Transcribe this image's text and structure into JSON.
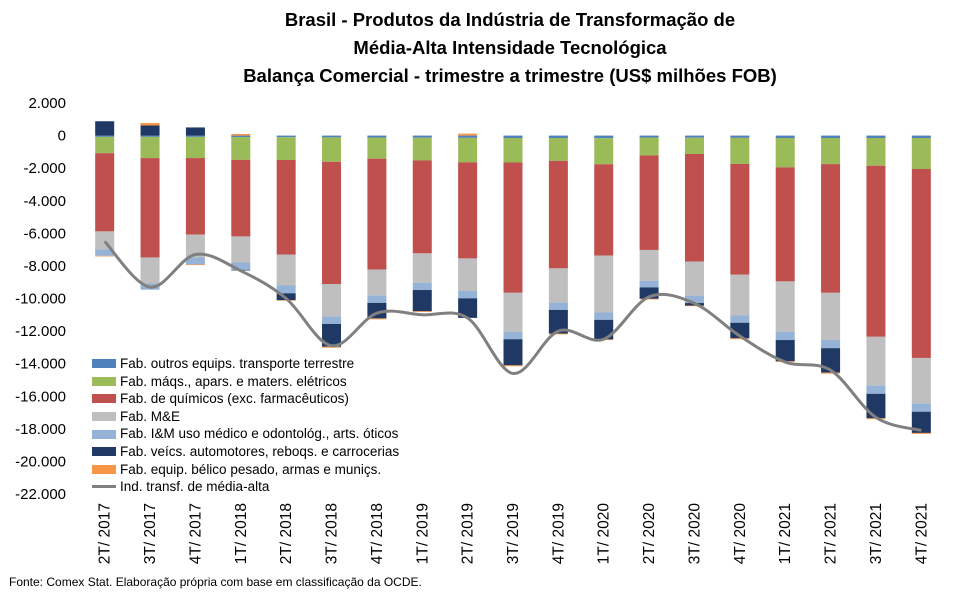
{
  "title_lines": [
    "Brasil - Produtos da Indústria de Transformação de",
    "Média-Alta Intensidade Tecnológica",
    "Balança Comercial - trimestre a trimestre (US$ milhões FOB)"
  ],
  "source": "Fonte:  Comex Stat. Elaboração própria com base em classificação da OCDE.",
  "chart_data": {
    "type": "bar",
    "stacked": true,
    "categories": [
      "2T/ 2017",
      "3T/ 2017",
      "4T/ 2017",
      "1T/ 2018",
      "2T/ 2018",
      "3T/ 2018",
      "4T/ 2018",
      "1T/ 2019",
      "2T/ 2019",
      "3T/ 2019",
      "4T/ 2019",
      "1T/ 2020",
      "2T/ 2020",
      "3T/ 2020",
      "4T/ 2020",
      "1T/ 2021",
      "2T/ 2021",
      "3T/ 2021",
      "4T/ 2021"
    ],
    "y_ticks": [
      "2.000",
      "0",
      "-2.000",
      "-4.000",
      "-6.000",
      "-8.000",
      "-10.000",
      "-12.000",
      "-14.000",
      "-16.000",
      "-18.000",
      "-20.000",
      "-22.000"
    ],
    "ylim": [
      -22000,
      2000
    ],
    "legend_position": "bottom-left",
    "series": [
      {
        "name": "Fab. outros equips. transporte terrestre",
        "color": "#4f81bd",
        "values": [
          -80,
          -80,
          -80,
          -90,
          -100,
          -110,
          -120,
          -130,
          -140,
          -150,
          -150,
          -160,
          -120,
          -130,
          -140,
          -150,
          -150,
          -150,
          -150
        ]
      },
      {
        "name": "Fab. máqs., apars. e maters. elétricos",
        "color": "#9bbb59",
        "values": [
          -1000,
          -1300,
          -1300,
          -1400,
          -1400,
          -1500,
          -1300,
          -1400,
          -1500,
          -1500,
          -1400,
          -1600,
          -1100,
          -1000,
          -1600,
          -1800,
          -1600,
          -1700,
          -1900
        ]
      },
      {
        "name": "Fab. de químicos (exc. farmacêuticos)",
        "color": "#c0504d",
        "values": [
          -4800,
          -6100,
          -4700,
          -4700,
          -5800,
          -7500,
          -6800,
          -5700,
          -5900,
          -8000,
          -6600,
          -5600,
          -5800,
          -6600,
          -6800,
          -7000,
          -7900,
          -10500,
          -11600
        ]
      },
      {
        "name": "Fab. M&E",
        "color": "#bfbfbf",
        "values": [
          -1100,
          -1600,
          -1400,
          -1600,
          -1900,
          -2000,
          -1600,
          -1800,
          -2000,
          -2400,
          -2100,
          -3500,
          -1900,
          -2100,
          -2500,
          -3100,
          -2900,
          -3000,
          -2800
        ]
      },
      {
        "name": "Fab. I&M uso médico e odontológ., arts. óticos",
        "color": "#95b3d7",
        "values": [
          -400,
          -380,
          -430,
          -450,
          -480,
          -450,
          -450,
          -450,
          -450,
          -450,
          -450,
          -450,
          -400,
          -450,
          -450,
          -500,
          -500,
          -500,
          -500
        ]
      },
      {
        "name": "Fab. veícs. automotores, reboqs. e carrocerias",
        "color": "#1f3864",
        "values": [
          880,
          620,
          500,
          -40,
          -420,
          -1400,
          -950,
          -1300,
          -1200,
          -1600,
          -1450,
          -1200,
          -700,
          -150,
          -950,
          -1300,
          -1500,
          -1500,
          -1300
        ]
      },
      {
        "name": "Fab. equip. bélico pesado, armas e muniçs.",
        "color": "#f79646",
        "values": [
          -30,
          150,
          -40,
          100,
          -40,
          -60,
          -60,
          -50,
          120,
          -60,
          -50,
          -40,
          -40,
          -40,
          -60,
          -50,
          -60,
          -60,
          -60
        ]
      }
    ],
    "line_series": {
      "name": "Ind. transf. de média-alta",
      "color": "#808080",
      "values": [
        -6500,
        -9300,
        -7300,
        -8300,
        -10000,
        -12900,
        -10900,
        -11000,
        -11200,
        -14600,
        -12000,
        -12500,
        -9900,
        -10300,
        -12300,
        -13900,
        -14400,
        -17300,
        -18100
      ]
    }
  }
}
